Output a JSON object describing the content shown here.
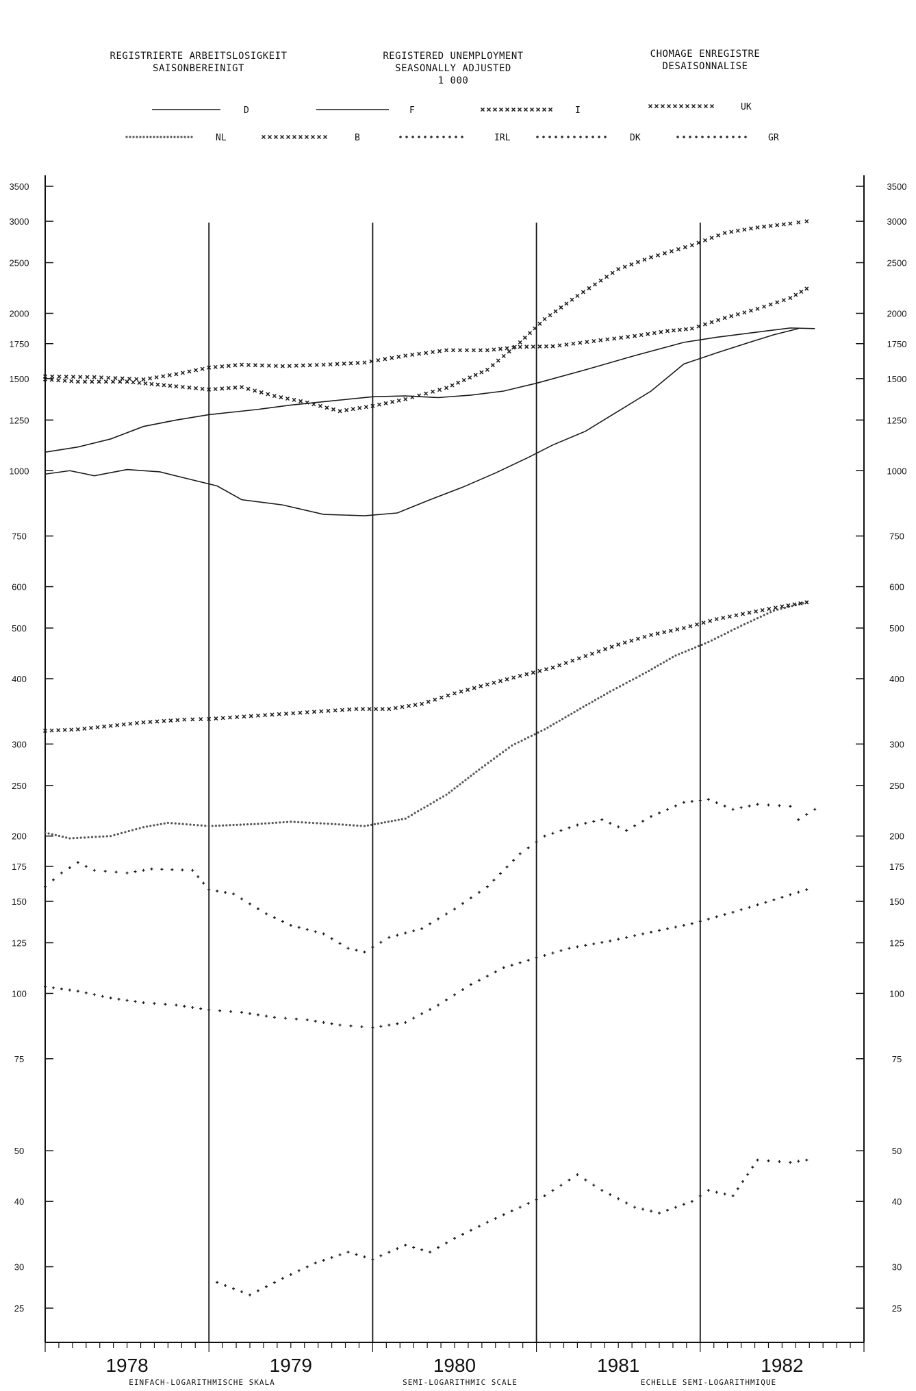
{
  "header": {
    "de_line1": "REGISTRIERTE ARBEITSLOSIGKEIT",
    "de_line2": "SAISONBEREINIGT",
    "en_line1": "REGISTERED UNEMPLOYMENT",
    "en_line2": "SEASONALLY ADJUSTED",
    "en_line3": "1 000",
    "fr_line1": "CHOMAGE ENREGISTRE",
    "fr_line2": "DESAISONNALISE"
  },
  "footer": {
    "de": "EINFACH-LOGARITHMISCHE SKALA",
    "en": "SEMI-LOGARITHMIC SCALE",
    "fr": "ECHELLE SEMI-LOGARITHMIQUE"
  },
  "chart_data": {
    "type": "line",
    "scale": "log",
    "ylim": [
      24,
      3700
    ],
    "xlim": [
      1978.0,
      1983.0
    ],
    "grid": false,
    "legend": "top",
    "y_ticks": [
      3500,
      3000,
      2500,
      2000,
      1750,
      1500,
      1250,
      1000,
      750,
      600,
      500,
      400,
      300,
      250,
      200,
      175,
      150,
      125,
      100,
      75,
      50,
      40,
      30,
      25
    ],
    "y_tick_labels": [
      "3500",
      "3000",
      "2500",
      "2000",
      "1750",
      "1500",
      "1250",
      "1000",
      "750",
      "600",
      "500",
      "400",
      "300",
      "250",
      "200",
      "175",
      "150",
      "125",
      "100",
      "75",
      "50",
      "40",
      "30",
      "25"
    ],
    "x_labels": [
      {
        "label": "1978",
        "x": 1978.5
      },
      {
        "label": "1979",
        "x": 1979.5
      },
      {
        "label": "1980",
        "x": 1980.5
      },
      {
        "label": "1981",
        "x": 1981.5
      },
      {
        "label": "1982",
        "x": 1982.5
      }
    ],
    "year_boundaries": [
      1979,
      1980,
      1981,
      1982
    ],
    "series": [
      {
        "name": "D",
        "style": "solid",
        "color": "#1a1a1a",
        "points": [
          [
            1978.0,
            985
          ],
          [
            1978.15,
            1000
          ],
          [
            1978.3,
            978
          ],
          [
            1978.5,
            1005
          ],
          [
            1978.7,
            995
          ],
          [
            1978.9,
            960
          ],
          [
            1979.05,
            935
          ],
          [
            1979.2,
            880
          ],
          [
            1979.45,
            860
          ],
          [
            1979.7,
            825
          ],
          [
            1979.95,
            820
          ],
          [
            1980.15,
            830
          ],
          [
            1980.35,
            880
          ],
          [
            1980.55,
            930
          ],
          [
            1980.75,
            990
          ],
          [
            1980.95,
            1060
          ],
          [
            1981.1,
            1120
          ],
          [
            1981.3,
            1190
          ],
          [
            1981.5,
            1300
          ],
          [
            1981.7,
            1420
          ],
          [
            1981.9,
            1600
          ],
          [
            1982.1,
            1680
          ],
          [
            1982.3,
            1760
          ],
          [
            1982.45,
            1820
          ],
          [
            1982.6,
            1870
          ]
        ]
      },
      {
        "name": "F",
        "style": "solid",
        "color": "#1a1a1a",
        "points": [
          [
            1978.0,
            1085
          ],
          [
            1978.2,
            1110
          ],
          [
            1978.4,
            1150
          ],
          [
            1978.6,
            1215
          ],
          [
            1978.8,
            1250
          ],
          [
            1979.0,
            1280
          ],
          [
            1979.3,
            1310
          ],
          [
            1979.5,
            1335
          ],
          [
            1979.75,
            1360
          ],
          [
            1980.0,
            1385
          ],
          [
            1980.2,
            1390
          ],
          [
            1980.4,
            1380
          ],
          [
            1980.6,
            1395
          ],
          [
            1980.8,
            1420
          ],
          [
            1981.0,
            1470
          ],
          [
            1981.3,
            1560
          ],
          [
            1981.6,
            1660
          ],
          [
            1981.9,
            1760
          ],
          [
            1982.1,
            1800
          ],
          [
            1982.4,
            1850
          ],
          [
            1982.55,
            1875
          ],
          [
            1982.7,
            1870
          ]
        ]
      },
      {
        "name": "I",
        "style": "cross",
        "color": "#1a1a1a",
        "points": [
          [
            1978.0,
            1515
          ],
          [
            1978.3,
            1510
          ],
          [
            1978.6,
            1495
          ],
          [
            1978.8,
            1530
          ],
          [
            1979.0,
            1575
          ],
          [
            1979.2,
            1595
          ],
          [
            1979.45,
            1585
          ],
          [
            1979.7,
            1595
          ],
          [
            1979.95,
            1610
          ],
          [
            1980.2,
            1660
          ],
          [
            1980.45,
            1700
          ],
          [
            1980.7,
            1700
          ],
          [
            1980.9,
            1725
          ],
          [
            1981.1,
            1730
          ],
          [
            1981.35,
            1770
          ],
          [
            1981.6,
            1810
          ],
          [
            1981.8,
            1850
          ],
          [
            1981.95,
            1870
          ],
          [
            1982.15,
            1960
          ],
          [
            1982.35,
            2040
          ],
          [
            1982.55,
            2140
          ],
          [
            1982.65,
            2230
          ]
        ]
      },
      {
        "name": "UK",
        "style": "cross",
        "color": "#1a1a1a",
        "points": [
          [
            1978.0,
            1495
          ],
          [
            1978.2,
            1480
          ],
          [
            1978.5,
            1480
          ],
          [
            1978.8,
            1450
          ],
          [
            1979.0,
            1430
          ],
          [
            1979.2,
            1445
          ],
          [
            1979.4,
            1390
          ],
          [
            1979.6,
            1350
          ],
          [
            1979.8,
            1300
          ],
          [
            1980.0,
            1330
          ],
          [
            1980.2,
            1370
          ],
          [
            1980.45,
            1440
          ],
          [
            1980.7,
            1560
          ],
          [
            1980.9,
            1760
          ],
          [
            1981.05,
            1950
          ],
          [
            1981.25,
            2160
          ],
          [
            1981.5,
            2430
          ],
          [
            1981.7,
            2560
          ],
          [
            1981.95,
            2700
          ],
          [
            1982.15,
            2850
          ],
          [
            1982.35,
            2920
          ],
          [
            1982.55,
            2970
          ],
          [
            1982.65,
            3000
          ]
        ]
      },
      {
        "name": "NL",
        "style": "dot",
        "color": "#555555",
        "points": [
          [
            1978.0,
            203
          ],
          [
            1978.15,
            198
          ],
          [
            1978.4,
            200
          ],
          [
            1978.6,
            208
          ],
          [
            1978.75,
            212
          ],
          [
            1979.0,
            209
          ],
          [
            1979.3,
            211
          ],
          [
            1979.5,
            213
          ],
          [
            1979.75,
            211
          ],
          [
            1979.95,
            209
          ],
          [
            1980.2,
            216
          ],
          [
            1980.45,
            240
          ],
          [
            1980.65,
            268
          ],
          [
            1980.85,
            298
          ],
          [
            1981.05,
            320
          ],
          [
            1981.25,
            348
          ],
          [
            1981.45,
            378
          ],
          [
            1981.65,
            408
          ],
          [
            1981.85,
            443
          ],
          [
            1982.05,
            470
          ],
          [
            1982.25,
            505
          ],
          [
            1982.45,
            540
          ],
          [
            1982.65,
            560
          ]
        ]
      },
      {
        "name": "B",
        "style": "cross",
        "color": "#1a1a1a",
        "points": [
          [
            1978.0,
            318
          ],
          [
            1978.2,
            320
          ],
          [
            1978.4,
            325
          ],
          [
            1978.6,
            330
          ],
          [
            1978.85,
            334
          ],
          [
            1979.0,
            335
          ],
          [
            1979.3,
            340
          ],
          [
            1979.6,
            345
          ],
          [
            1979.9,
            350
          ],
          [
            1980.1,
            350
          ],
          [
            1980.3,
            358
          ],
          [
            1980.5,
            375
          ],
          [
            1980.7,
            390
          ],
          [
            1980.9,
            405
          ],
          [
            1981.1,
            420
          ],
          [
            1981.3,
            442
          ],
          [
            1981.5,
            465
          ],
          [
            1981.7,
            485
          ],
          [
            1981.9,
            500
          ],
          [
            1982.1,
            520
          ],
          [
            1982.3,
            535
          ],
          [
            1982.5,
            550
          ],
          [
            1982.65,
            560
          ]
        ]
      },
      {
        "name": "IRL",
        "style": "plus",
        "color": "#1a1a1a",
        "points": [
          [
            1978.0,
            103
          ],
          [
            1978.2,
            101
          ],
          [
            1978.4,
            98
          ],
          [
            1978.6,
            96
          ],
          [
            1978.8,
            95
          ],
          [
            1979.0,
            93
          ],
          [
            1979.2,
            92
          ],
          [
            1979.4,
            90
          ],
          [
            1979.6,
            89
          ],
          [
            1979.8,
            87
          ],
          [
            1980.0,
            86
          ],
          [
            1980.2,
            88
          ],
          [
            1980.4,
            95
          ],
          [
            1980.6,
            104
          ],
          [
            1980.8,
            112
          ],
          [
            1981.0,
            117
          ],
          [
            1981.2,
            122
          ],
          [
            1981.45,
            126
          ],
          [
            1981.7,
            131
          ],
          [
            1981.95,
            136
          ],
          [
            1982.2,
            143
          ],
          [
            1982.45,
            151
          ],
          [
            1982.65,
            158
          ]
        ]
      },
      {
        "name": "DK",
        "style": "plus",
        "color": "#1a1a1a",
        "points": [
          [
            1978.0,
            160
          ],
          [
            1978.1,
            170
          ],
          [
            1978.2,
            178
          ],
          [
            1978.3,
            172
          ],
          [
            1978.5,
            170
          ],
          [
            1978.65,
            173
          ],
          [
            1978.9,
            172
          ],
          [
            1979.0,
            158
          ],
          [
            1979.15,
            155
          ],
          [
            1979.35,
            142
          ],
          [
            1979.5,
            135
          ],
          [
            1979.7,
            130
          ],
          [
            1979.85,
            122
          ],
          [
            1979.95,
            120
          ],
          [
            1980.1,
            128
          ],
          [
            1980.3,
            133
          ],
          [
            1980.5,
            145
          ],
          [
            1980.7,
            160
          ],
          [
            1980.9,
            185
          ],
          [
            1981.05,
            200
          ],
          [
            1981.25,
            210
          ],
          [
            1981.4,
            215
          ],
          [
            1981.55,
            205
          ],
          [
            1981.7,
            218
          ],
          [
            1981.9,
            232
          ],
          [
            1982.05,
            235
          ],
          [
            1982.2,
            225
          ],
          [
            1982.35,
            230
          ],
          [
            1982.55,
            228
          ],
          [
            1982.6,
            215
          ],
          [
            1982.7,
            225
          ]
        ]
      },
      {
        "name": "GR",
        "style": "plus",
        "color": "#1a1a1a",
        "points": [
          [
            1979.05,
            28
          ],
          [
            1979.25,
            26.5
          ],
          [
            1979.45,
            28.5
          ],
          [
            1979.65,
            30.5
          ],
          [
            1979.85,
            32
          ],
          [
            1980.0,
            31
          ],
          [
            1980.2,
            33
          ],
          [
            1980.35,
            32
          ],
          [
            1980.5,
            34
          ],
          [
            1980.7,
            36.5
          ],
          [
            1980.9,
            39
          ],
          [
            1981.05,
            41
          ],
          [
            1981.25,
            45
          ],
          [
            1981.4,
            42
          ],
          [
            1981.6,
            39
          ],
          [
            1981.75,
            38
          ],
          [
            1981.95,
            40
          ],
          [
            1982.05,
            42
          ],
          [
            1982.2,
            41
          ],
          [
            1982.35,
            48
          ],
          [
            1982.55,
            47.5
          ],
          [
            1982.65,
            48
          ]
        ]
      }
    ]
  }
}
